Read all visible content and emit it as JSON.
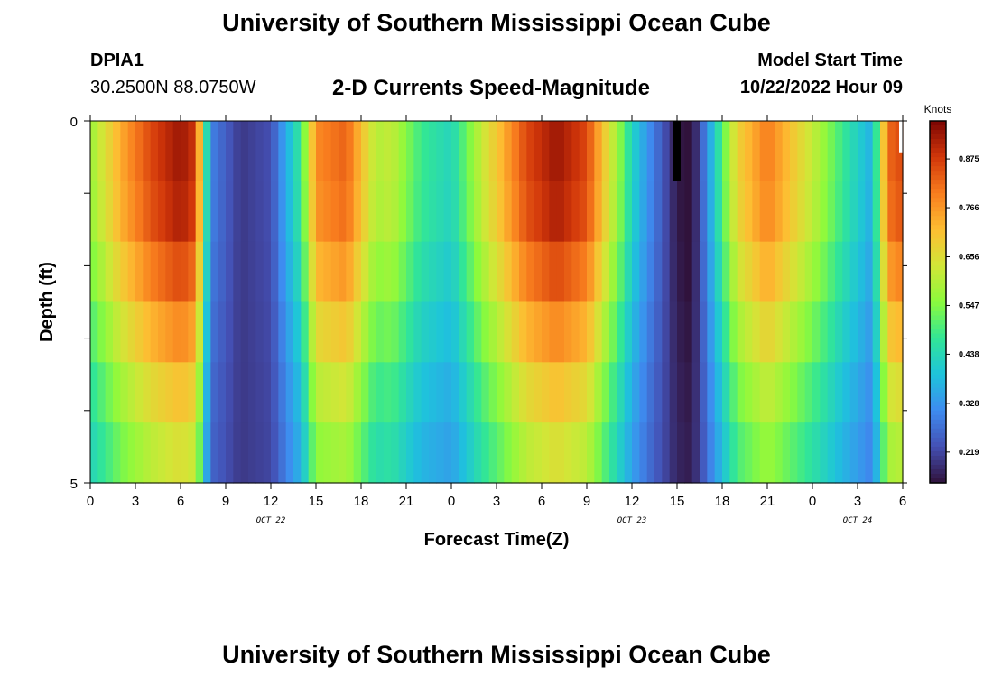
{
  "page": {
    "title_top": "University of Southern Mississippi Ocean Cube",
    "title_bottom": "University of Southern Mississippi Ocean Cube",
    "station_id": "DPIA1",
    "coords": "30.2500N  88.0750W",
    "plot_title": "2-D Currents Speed-Magnitude",
    "model_start_label": "Model Start Time",
    "model_start_value": "10/22/2022 Hour 09"
  },
  "chart_data": {
    "type": "heatmap",
    "title": "2-D Currents Speed-Magnitude",
    "xlabel": "Forecast Time(Z)",
    "ylabel": "Depth (ft)",
    "colorbar_label": "Knots",
    "x_range_hours": [
      0,
      54
    ],
    "y_range": [
      0,
      5
    ],
    "y_ticks": [
      "0",
      "5"
    ],
    "x_tick_labels": [
      "0",
      "3",
      "6",
      "9",
      "12",
      "15",
      "18",
      "21",
      "0",
      "3",
      "6",
      "9",
      "12",
      "15",
      "18",
      "21",
      "0",
      "3",
      "6"
    ],
    "date_labels": [
      {
        "text": "OCT 22",
        "hour": 12
      },
      {
        "text": "OCT 23",
        "hour": 36
      },
      {
        "text": "OCT 24",
        "hour": 51
      }
    ],
    "colorbar_ticks": [
      "0.875",
      "0.766",
      "0.656",
      "0.547",
      "0.438",
      "0.328",
      "0.219"
    ],
    "value_range_knots": [
      0.15,
      0.96
    ],
    "depth_layers": 5,
    "time_step_hours": 0.5,
    "speed_profile_key_hours": [
      0,
      2,
      4,
      6,
      7,
      8,
      10,
      12,
      14,
      15,
      17,
      19,
      20,
      22,
      24,
      26,
      29,
      31,
      33,
      35,
      36,
      37,
      39,
      40,
      41,
      43,
      45,
      48,
      50,
      52,
      53,
      54
    ],
    "speed_profile_key_knots": [
      0.57,
      0.74,
      0.86,
      0.93,
      0.88,
      0.3,
      0.2,
      0.23,
      0.48,
      0.78,
      0.83,
      0.6,
      0.62,
      0.48,
      0.43,
      0.62,
      0.86,
      0.93,
      0.86,
      0.58,
      0.43,
      0.33,
      0.16,
      0.14,
      0.32,
      0.68,
      0.8,
      0.62,
      0.48,
      0.36,
      0.82,
      0.86
    ],
    "depth_factors": [
      1.0,
      0.98,
      0.9,
      0.8,
      0.7,
      0.62
    ],
    "missing_cells": [
      {
        "hour": 39,
        "depth_index": 0
      }
    ]
  }
}
